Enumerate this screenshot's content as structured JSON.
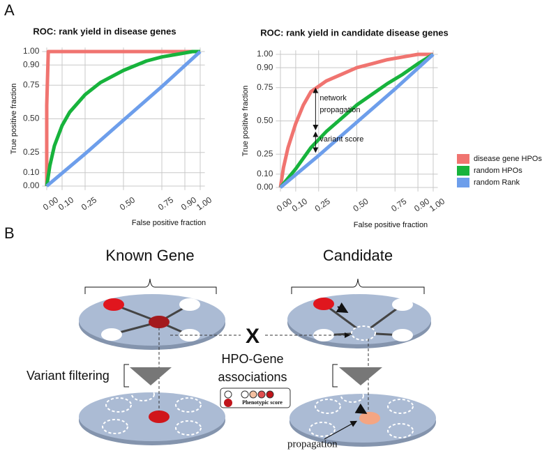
{
  "panel_labels": [
    "A",
    "B"
  ],
  "chart_data": [
    {
      "type": "line",
      "title": "ROC: rank yield in disease genes",
      "x_label": "False positive fraction",
      "y_label": "True positive fraction",
      "xlim": [
        -0.03,
        1.03
      ],
      "ylim": [
        -0.03,
        1.03
      ],
      "grid": true,
      "xticks": [
        {
          "value": 0,
          "label": "0.00"
        },
        {
          "value": 0.1,
          "label": "0.10"
        },
        {
          "value": 0.25,
          "label": "0.25"
        },
        {
          "value": 0.5,
          "label": "0.50"
        },
        {
          "value": 0.75,
          "label": "0.75"
        },
        {
          "value": 0.9,
          "label": "0.90"
        },
        {
          "value": 1,
          "label": "1.00"
        }
      ],
      "yticks": [
        {
          "value": 0,
          "label": "0.00"
        },
        {
          "value": 0.1,
          "label": "0.10"
        },
        {
          "value": 0.25,
          "label": "0.25"
        },
        {
          "value": 0.5,
          "label": "0.50"
        },
        {
          "value": 0.75,
          "label": "0.75"
        },
        {
          "value": 0.9,
          "label": "0.90"
        },
        {
          "value": 1,
          "label": "1.00"
        }
      ],
      "series": [
        {
          "color": "#f07470",
          "x": [
            0,
            0,
            0.01,
            1
          ],
          "values": [
            0,
            0.6,
            1,
            1
          ]
        },
        {
          "color": "#17b33c",
          "x": [
            0,
            0.02,
            0.05,
            0.1,
            0.15,
            0.25,
            0.35,
            0.5,
            0.65,
            0.75,
            0.85,
            0.95,
            1
          ],
          "values": [
            0,
            0.15,
            0.3,
            0.45,
            0.55,
            0.68,
            0.77,
            0.86,
            0.93,
            0.96,
            0.98,
            1,
            1
          ]
        },
        {
          "color": "#6d9eeb",
          "x": [
            0,
            0.25,
            0.5,
            0.75,
            1
          ],
          "values": [
            0,
            0.24,
            0.49,
            0.74,
            1
          ]
        }
      ]
    },
    {
      "type": "line",
      "title": "ROC: rank yield in candidate disease genes",
      "x_label": "False positive fraction",
      "y_label": "True positive fraction",
      "xlim": [
        -0.03,
        1.03
      ],
      "ylim": [
        -0.03,
        1.03
      ],
      "grid": true,
      "xticks": [
        {
          "value": 0,
          "label": "0.00"
        },
        {
          "value": 0.1,
          "label": "0.10"
        },
        {
          "value": 0.25,
          "label": "0.25"
        },
        {
          "value": 0.5,
          "label": "0.50"
        },
        {
          "value": 0.75,
          "label": "0.75"
        },
        {
          "value": 0.9,
          "label": "0.90"
        },
        {
          "value": 1,
          "label": "1.00"
        }
      ],
      "yticks": [
        {
          "value": 0,
          "label": "0.00"
        },
        {
          "value": 0.1,
          "label": "0.10"
        },
        {
          "value": 0.25,
          "label": "0.25"
        },
        {
          "value": 0.5,
          "label": "0.50"
        },
        {
          "value": 0.75,
          "label": "0.75"
        },
        {
          "value": 0.9,
          "label": "0.90"
        },
        {
          "value": 1,
          "label": "1.00"
        }
      ],
      "annotations": [
        "network",
        "propagation",
        "variant score"
      ],
      "legend": "right",
      "series": [
        {
          "name": "disease gene HPOs",
          "color": "#f07470",
          "x": [
            0,
            0.02,
            0.05,
            0.1,
            0.15,
            0.2,
            0.25,
            0.3,
            0.4,
            0.5,
            0.6,
            0.7,
            0.8,
            0.9,
            1
          ],
          "values": [
            0,
            0.15,
            0.3,
            0.48,
            0.62,
            0.72,
            0.76,
            0.8,
            0.85,
            0.9,
            0.93,
            0.96,
            0.98,
            1,
            1
          ]
        },
        {
          "name": "random HPOs",
          "color": "#17b33c",
          "x": [
            0,
            0.1,
            0.2,
            0.3,
            0.4,
            0.5,
            0.6,
            0.7,
            0.8,
            0.9,
            1
          ],
          "values": [
            0,
            0.14,
            0.3,
            0.42,
            0.52,
            0.62,
            0.7,
            0.78,
            0.85,
            0.93,
            1
          ]
        },
        {
          "name": "random Rank",
          "color": "#6d9eeb",
          "x": [
            0,
            0.25,
            0.5,
            0.75,
            1
          ],
          "values": [
            0,
            0.24,
            0.49,
            0.74,
            1
          ]
        }
      ]
    }
  ],
  "diagram": {
    "known_gene": "Known Gene",
    "candidate": "Candidate",
    "variant_filtering": "Variant filtering",
    "cross": "X",
    "association": [
      "HPO-Gene",
      "associations"
    ],
    "score_legend": "Phenotypic score",
    "propagation_label": "propagation"
  }
}
